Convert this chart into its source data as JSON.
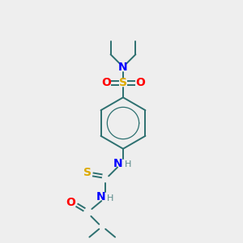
{
  "bg_color": "#eeeeee",
  "bond_color": "#2d7070",
  "colors": {
    "N": "#0000ff",
    "O": "#ff0000",
    "S_sulfo": "#ddaa00",
    "S_thio": "#ddaa00",
    "H": "#5a8a8a",
    "C": "#2d7070"
  },
  "figsize": [
    3.0,
    3.0
  ],
  "dpi": 100
}
